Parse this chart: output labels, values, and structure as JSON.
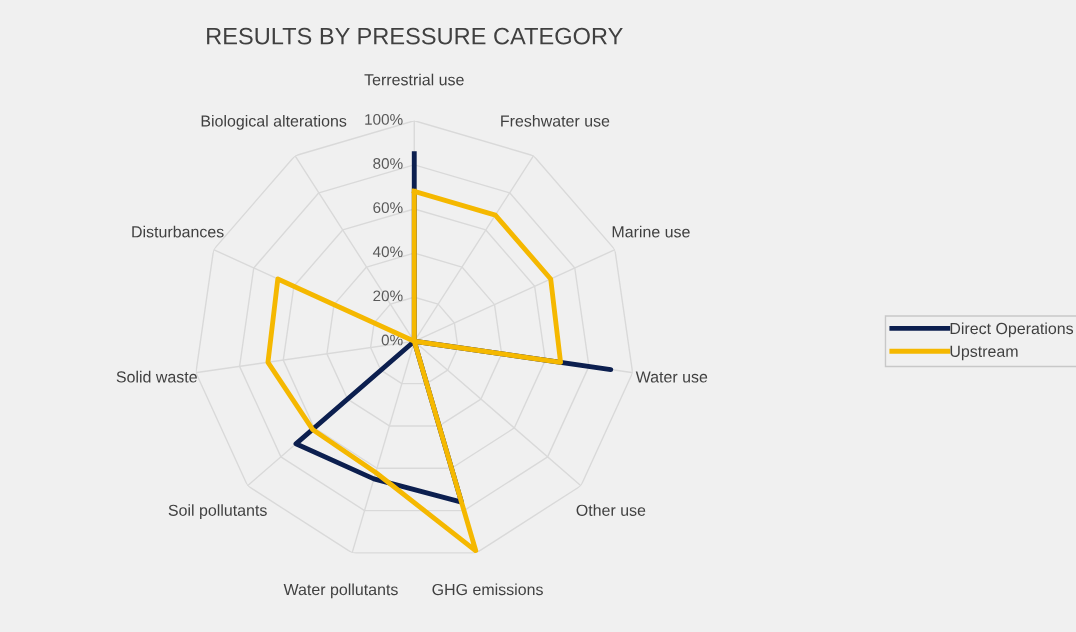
{
  "chart_data": {
    "type": "radar",
    "title": "RESULTS BY PRESSURE CATEGORY",
    "categories": [
      "Terrestrial use",
      "Freshwater use",
      "Marine use",
      "Water use",
      "Other use",
      "GHG emissions",
      "Water pollutants",
      "Soil pollutants",
      "Solid waste",
      "Disturbances",
      "Biological alterations"
    ],
    "series": [
      {
        "name": "Direct Operations",
        "color": "#0c1f4f",
        "values": [
          85,
          0,
          0,
          90,
          0,
          76,
          65,
          71,
          0,
          0,
          0
        ]
      },
      {
        "name": "Upstream",
        "color": "#f5b800",
        "values": [
          68,
          68,
          68,
          67,
          0,
          99,
          62,
          61,
          67,
          68,
          0
        ]
      }
    ],
    "ylim": [
      0,
      100
    ],
    "yticks": [
      {
        "value": 0,
        "label": "0%"
      },
      {
        "value": 20,
        "label": "20%"
      },
      {
        "value": 40,
        "label": "40%"
      },
      {
        "value": 60,
        "label": "60%"
      },
      {
        "value": 80,
        "label": "80%"
      },
      {
        "value": 100,
        "label": "100%"
      }
    ],
    "grid": true,
    "legend": "right",
    "marker": "none",
    "line_style": "solid"
  }
}
